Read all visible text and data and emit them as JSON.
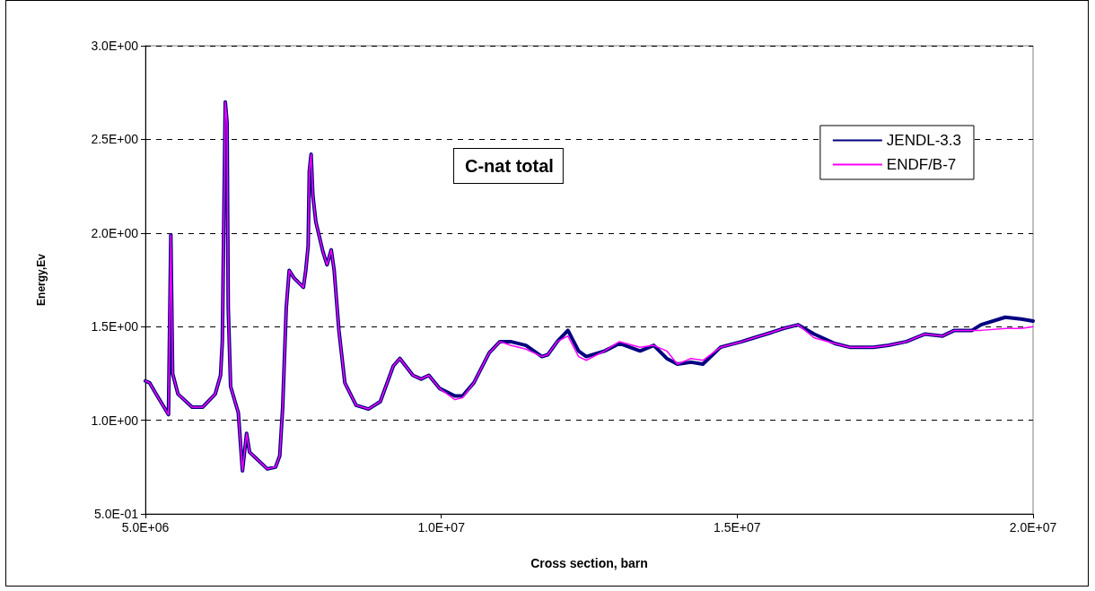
{
  "chart_data": {
    "type": "line",
    "annotations": [
      "C-nat total"
    ],
    "xlabel": "Cross section, barn",
    "ylabel": "Energy,Ev",
    "xlim": [
      5000000,
      20000000
    ],
    "xticks": [
      {
        "value": 5000000,
        "label": "5.0E+06"
      },
      {
        "value": 10000000,
        "label": "1.0E+07"
      },
      {
        "value": 15000000,
        "label": "1.5E+07"
      },
      {
        "value": 20000000,
        "label": "2.0E+07"
      }
    ],
    "ylim": [
      0.5,
      3.0
    ],
    "yticks": [
      {
        "value": 0.5,
        "label": "5.0E-01"
      },
      {
        "value": 1.0,
        "label": "1.0E+00"
      },
      {
        "value": 1.5,
        "label": "1.5E+00"
      },
      {
        "value": 2.0,
        "label": "2.0E+00"
      },
      {
        "value": 2.5,
        "label": "2.5E+00"
      },
      {
        "value": 3.0,
        "label": "3.0E+00"
      }
    ],
    "grid": "y",
    "legend": "top right",
    "marker": "none",
    "line_style": "solid",
    "x": [
      5000000,
      5070000,
      5180000,
      5390000,
      5430000,
      5460000,
      5550000,
      5790000,
      5970000,
      6180000,
      6270000,
      6300000,
      6350000,
      6380000,
      6400000,
      6440000,
      6570000,
      6640000,
      6710000,
      6760000,
      7060000,
      7200000,
      7270000,
      7320000,
      7380000,
      7430000,
      7510000,
      7670000,
      7710000,
      7750000,
      7770000,
      7800000,
      7830000,
      7880000,
      8000000,
      8070000,
      8140000,
      8190000,
      8270000,
      8370000,
      8560000,
      8770000,
      8970000,
      9190000,
      9300000,
      9520000,
      9660000,
      9790000,
      9970000,
      10230000,
      10360000,
      10550000,
      10810000,
      10990000,
      11170000,
      11430000,
      11700000,
      11800000,
      11960000,
      12140000,
      12320000,
      12450000,
      12760000,
      13010000,
      13360000,
      13590000,
      13810000,
      13990000,
      14220000,
      14420000,
      14720000,
      15080000,
      15280000,
      15590000,
      15780000,
      16030000,
      16300000,
      16650000,
      16900000,
      17300000,
      17560000,
      17860000,
      18170000,
      18470000,
      18670000,
      18970000,
      19120000,
      19530000,
      19800000,
      20000000
    ],
    "series": [
      {
        "name": "JENDL-3.3",
        "color": "#000080",
        "values": [
          1.21,
          1.2,
          1.14,
          1.03,
          1.99,
          1.25,
          1.14,
          1.07,
          1.07,
          1.14,
          1.24,
          1.42,
          2.7,
          2.59,
          1.6,
          1.18,
          1.04,
          0.73,
          0.93,
          0.83,
          0.74,
          0.75,
          0.81,
          1.07,
          1.6,
          1.8,
          1.76,
          1.71,
          1.8,
          1.93,
          2.33,
          2.42,
          2.2,
          2.06,
          1.9,
          1.83,
          1.91,
          1.8,
          1.48,
          1.2,
          1.08,
          1.06,
          1.1,
          1.29,
          1.33,
          1.24,
          1.22,
          1.24,
          1.17,
          1.13,
          1.13,
          1.2,
          1.36,
          1.42,
          1.42,
          1.4,
          1.34,
          1.35,
          1.42,
          1.48,
          1.37,
          1.34,
          1.37,
          1.41,
          1.37,
          1.4,
          1.33,
          1.3,
          1.31,
          1.3,
          1.39,
          1.42,
          1.44,
          1.47,
          1.49,
          1.51,
          1.46,
          1.41,
          1.39,
          1.39,
          1.4,
          1.42,
          1.46,
          1.45,
          1.48,
          1.48,
          1.51,
          1.55,
          1.54,
          1.53
        ]
      },
      {
        "name": "ENDF/B-7",
        "color": "#ff00ff",
        "values": [
          1.21,
          1.2,
          1.14,
          1.03,
          1.99,
          1.25,
          1.14,
          1.07,
          1.07,
          1.14,
          1.24,
          1.42,
          2.7,
          2.59,
          1.6,
          1.18,
          1.04,
          0.73,
          0.93,
          0.83,
          0.74,
          0.75,
          0.81,
          1.07,
          1.6,
          1.8,
          1.76,
          1.71,
          1.8,
          1.93,
          2.33,
          2.42,
          2.2,
          2.06,
          1.9,
          1.83,
          1.91,
          1.8,
          1.48,
          1.2,
          1.08,
          1.06,
          1.1,
          1.29,
          1.33,
          1.24,
          1.22,
          1.24,
          1.17,
          1.11,
          1.12,
          1.2,
          1.36,
          1.42,
          1.4,
          1.38,
          1.34,
          1.35,
          1.42,
          1.45,
          1.34,
          1.32,
          1.37,
          1.42,
          1.39,
          1.4,
          1.37,
          1.3,
          1.33,
          1.32,
          1.39,
          1.42,
          1.44,
          1.47,
          1.49,
          1.51,
          1.44,
          1.41,
          1.39,
          1.39,
          1.4,
          1.42,
          1.46,
          1.45,
          1.48,
          1.48,
          1.48,
          1.49,
          1.49,
          1.5
        ]
      }
    ]
  }
}
